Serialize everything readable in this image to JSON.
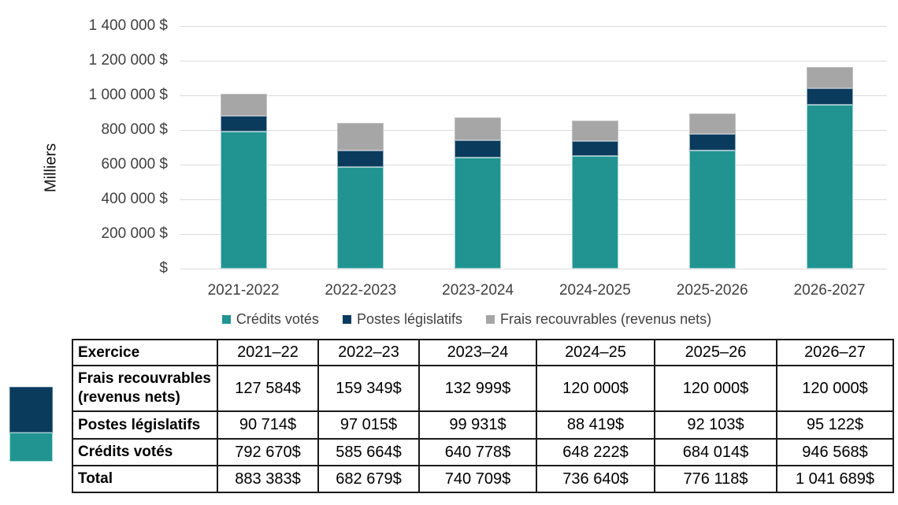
{
  "chart_data": {
    "type": "bar",
    "stacked": true,
    "title": "",
    "ylabel": "Milliers",
    "ylim": [
      0,
      1400000
    ],
    "grid": true,
    "legend_position": "bottom",
    "categories": [
      "2021-2022",
      "2022-2023",
      "2023-2024",
      "2024-2025",
      "2025-2026",
      "2026-2027"
    ],
    "series": [
      {
        "name": "Crédits votés",
        "color": "#219492",
        "border": "#9fd4d2",
        "values": [
          792670,
          585664,
          640778,
          648222,
          684014,
          946568
        ]
      },
      {
        "name": "Postes législatifs",
        "color": "#0A3B5C",
        "border": "#96aabb",
        "values": [
          90714,
          97015,
          99931,
          88419,
          92103,
          95122
        ]
      },
      {
        "name": "Frais recouvrables (revenus nets)",
        "color": "#A6A6A6",
        "border": "#c2c2c2",
        "values": [
          127584,
          159349,
          132999,
          120000,
          120000,
          120000
        ]
      }
    ],
    "y_ticks": [
      {
        "value": 1400000,
        "label": "1 400 000 $"
      },
      {
        "value": 1200000,
        "label": "1 200 000 $"
      },
      {
        "value": 1000000,
        "label": "1 000 000 $"
      },
      {
        "value": 800000,
        "label": "800 000 $"
      },
      {
        "value": 600000,
        "label": "600 000 $"
      },
      {
        "value": 400000,
        "label": "400 000 $"
      },
      {
        "value": 200000,
        "label": "200 000 $"
      },
      {
        "value": 0,
        "label": "$"
      }
    ]
  },
  "table": {
    "header": [
      "Exercice",
      "2021–22",
      "2022–23",
      "2023–24",
      "2024–25",
      "2025–26",
      "2026–27"
    ],
    "rows": [
      {
        "label": "Frais recouvrables\n(revenus nets)",
        "values": [
          "127 584$",
          "159 349$",
          "132 999$",
          "120 000$",
          "120 000$",
          "120 000$"
        ]
      },
      {
        "label": "Postes législatifs",
        "values": [
          "90 714$",
          "97 015$",
          "99 931$",
          "88 419$",
          "92 103$",
          "95 122$"
        ]
      },
      {
        "label": "Crédits votés",
        "values": [
          "792 670$",
          "585 664$",
          "640 778$",
          "648 222$",
          "684 014$",
          "946 568$"
        ]
      },
      {
        "label": "Total",
        "values": [
          "883 383$",
          "682 679$",
          "740 709$",
          "736 640$",
          "776 118$",
          "1 041 689$"
        ]
      }
    ]
  },
  "decoration": {
    "navy_swatch": {
      "fill": "#0A3B5C",
      "border": "#4f7490"
    },
    "teal_swatch": {
      "fill": "#219492",
      "border": "#a6dad6"
    }
  },
  "colors": {
    "gridline": "#DCDCDC",
    "axis_text": "#404040",
    "table_border": "#1a1a1a"
  }
}
